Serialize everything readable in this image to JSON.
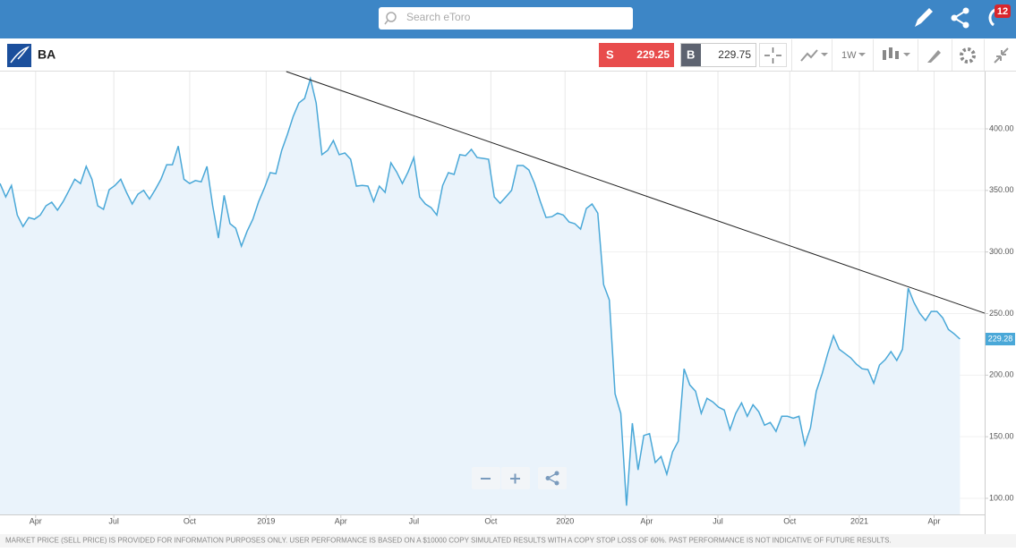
{
  "header": {
    "search_placeholder": "Search eToro",
    "notification_count": "12"
  },
  "instrument": {
    "symbol": "BA",
    "sell_label": "S",
    "sell_price": "229.25",
    "buy_label": "B",
    "buy_price": "229.75",
    "timeframe": "1W"
  },
  "chart_data": {
    "type": "line",
    "color": "#4aa8d8",
    "fill": "#eaf3fb",
    "values": [
      355.6,
      344.7,
      354,
      330,
      320.7,
      328,
      326.6,
      330,
      337.5,
      340.4,
      334,
      341,
      350,
      359,
      355.6,
      369.5,
      359,
      337.5,
      334.6,
      350.6,
      354,
      359,
      348.4,
      339,
      347,
      350,
      343,
      350.6,
      359,
      370.9,
      370.9,
      386,
      359,
      355.6,
      358,
      357,
      369.5,
      337.5,
      311.3,
      346,
      323,
      319.3,
      304.8,
      317,
      326.6,
      341,
      352,
      364.4,
      363.6,
      382.5,
      395.6,
      410,
      421,
      424.7,
      440.7,
      421,
      379,
      382.5,
      390.5,
      379,
      380.4,
      375.3,
      353.5,
      354,
      353.5,
      341,
      353.5,
      348.4,
      372.4,
      365,
      355.6,
      365,
      376.7,
      344.7,
      339,
      336,
      330,
      354,
      364.4,
      363,
      379,
      378.2,
      383.3,
      376.7,
      376,
      375.3,
      344.7,
      339.6,
      344.7,
      350,
      370.2,
      370.2,
      366.6,
      355.6,
      341,
      328,
      328.7,
      331.6,
      330,
      324.4,
      323,
      318.6,
      335.3,
      339,
      331.6,
      273.5,
      261,
      184.8,
      169,
      94,
      161,
      123,
      151,
      152.5,
      129,
      134,
      119.6,
      137.6,
      146.3,
      205.2,
      192,
      187,
      169,
      181.2,
      178.3,
      174,
      171.7,
      155.7,
      169,
      177.5,
      166.6,
      176,
      170.3,
      159.4,
      161.6,
      154.3,
      166.6,
      166.6,
      165,
      166.6,
      143.4,
      157.2,
      187,
      200.8,
      217.5,
      232,
      221,
      217.5,
      214,
      208.9,
      205.2,
      204.5,
      193.5,
      208.2,
      212.6,
      219.1,
      211.9,
      221,
      270.6,
      259,
      250.3,
      244.4,
      251.7,
      251.7,
      246.6,
      237.1,
      233.5,
      229.28
    ],
    "xlim": [
      0,
      171.3
    ],
    "ylim": [
      86.9,
      446.5
    ],
    "xticks": [
      {
        "value": 6.2,
        "label": "Apr"
      },
      {
        "value": 19.8,
        "label": "Jul"
      },
      {
        "value": 33,
        "label": "Oct"
      },
      {
        "value": 46.3,
        "label": "2019"
      },
      {
        "value": 59.3,
        "label": "Apr"
      },
      {
        "value": 72,
        "label": "Jul"
      },
      {
        "value": 85.4,
        "label": "Oct"
      },
      {
        "value": 98.3,
        "label": "2020"
      },
      {
        "value": 112.5,
        "label": "Apr"
      },
      {
        "value": 124.9,
        "label": "Jul"
      },
      {
        "value": 137.4,
        "label": "Oct"
      },
      {
        "value": 149.5,
        "label": "2021"
      },
      {
        "value": 162.5,
        "label": "Apr"
      }
    ],
    "yticks": [
      {
        "value": 100,
        "label": "100.00"
      },
      {
        "value": 150,
        "label": "150.00"
      },
      {
        "value": 200,
        "label": "200.00"
      },
      {
        "value": 250,
        "label": "250.00"
      },
      {
        "value": 300,
        "label": "300.00"
      },
      {
        "value": 350,
        "label": "350.00"
      },
      {
        "value": 400,
        "label": "400.00"
      }
    ],
    "grid": true,
    "trendline": {
      "x": [
        49.8,
        171.3
      ],
      "y": [
        446.5,
        250.3
      ]
    }
  },
  "footer": {
    "disclaimer": "MARKET PRICE (SELL PRICE) IS PROVIDED FOR INFORMATION PURPOSES ONLY. USER PERFORMANCE IS BASED ON A $10000 COPY SIMULATED RESULTS WITH A COPY STOP LOSS OF 60%. PAST PERFORMANCE IS NOT INDICATIVE OF FUTURE RESULTS."
  }
}
